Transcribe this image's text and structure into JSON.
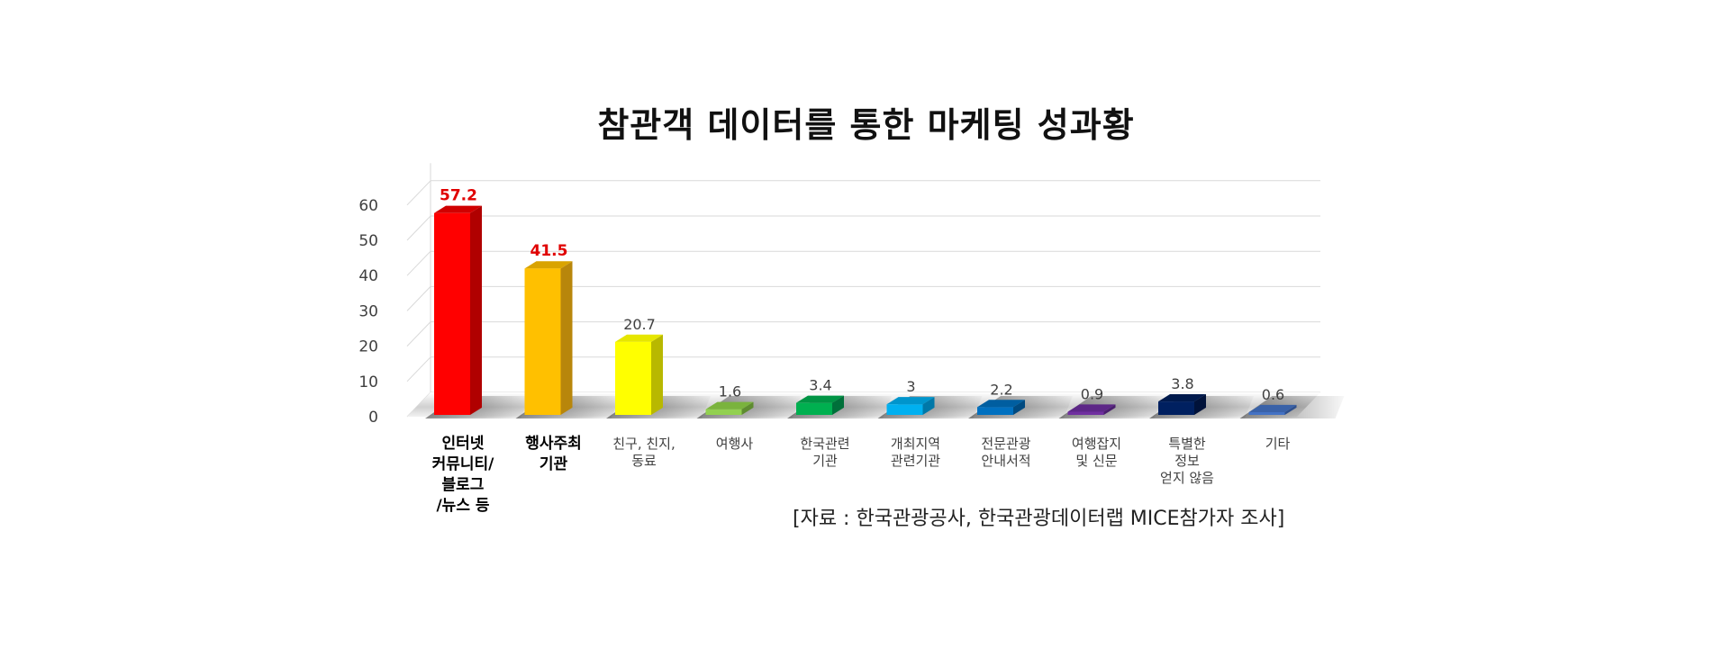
{
  "title": "참관객 데이터를 통한 마케팅 성과황",
  "source": "[자료 : 한국관광공사, 한국관광데이터랩 MICE참가자 조사]",
  "chart_data": {
    "type": "bar",
    "title": "참관객 데이터를 통한 마케팅 성과황",
    "xlabel": "",
    "ylabel": "",
    "ylim": [
      0,
      65
    ],
    "yticks": [
      "0",
      "10",
      "20",
      "30",
      "40",
      "50",
      "60"
    ],
    "grid": true,
    "legend": "none",
    "categories": [
      "인터넷\n커뮤니티/\n블로그\n/뉴스 등",
      "행사주최\n기관",
      "친구, 친지,\n동료",
      "여행사",
      "한국관련\n기관",
      "개최지역\n관련기관",
      "전문관광\n안내서적",
      "여행잡지\n및 신문",
      "특별한\n정보\n얻지 않음",
      "기타"
    ],
    "values": [
      57.2,
      41.5,
      20.7,
      1.6,
      3.4,
      3,
      2.2,
      0.9,
      3.8,
      0.6
    ],
    "value_labels": [
      "57.2",
      "41.5",
      "20.7",
      "1.6",
      "3.4",
      "3",
      "2.2",
      "0.9",
      "3.8",
      "0.6"
    ],
    "highlighted": [
      true,
      true,
      false,
      false,
      false,
      false,
      false,
      false,
      false,
      false
    ],
    "colors": [
      "#ff0000",
      "#ffc000",
      "#ffff00",
      "#92d050",
      "#00b050",
      "#00b0f0",
      "#0070c0",
      "#7030a0",
      "#002060",
      "#4472c4"
    ],
    "side_colors": [
      "#b00000",
      "#b8860b",
      "#b8b800",
      "#5e8c30",
      "#00703a",
      "#0078a8",
      "#004a80",
      "#4a1f6e",
      "#00123a",
      "#2e4f8c"
    ],
    "top_colors": [
      "#d00000",
      "#d9a300",
      "#e6e600",
      "#7ab33d",
      "#009444",
      "#0095cc",
      "#005ea0",
      "#5d2787",
      "#001a4d",
      "#3a62a8"
    ],
    "highlight_label_color": "#e00000"
  }
}
